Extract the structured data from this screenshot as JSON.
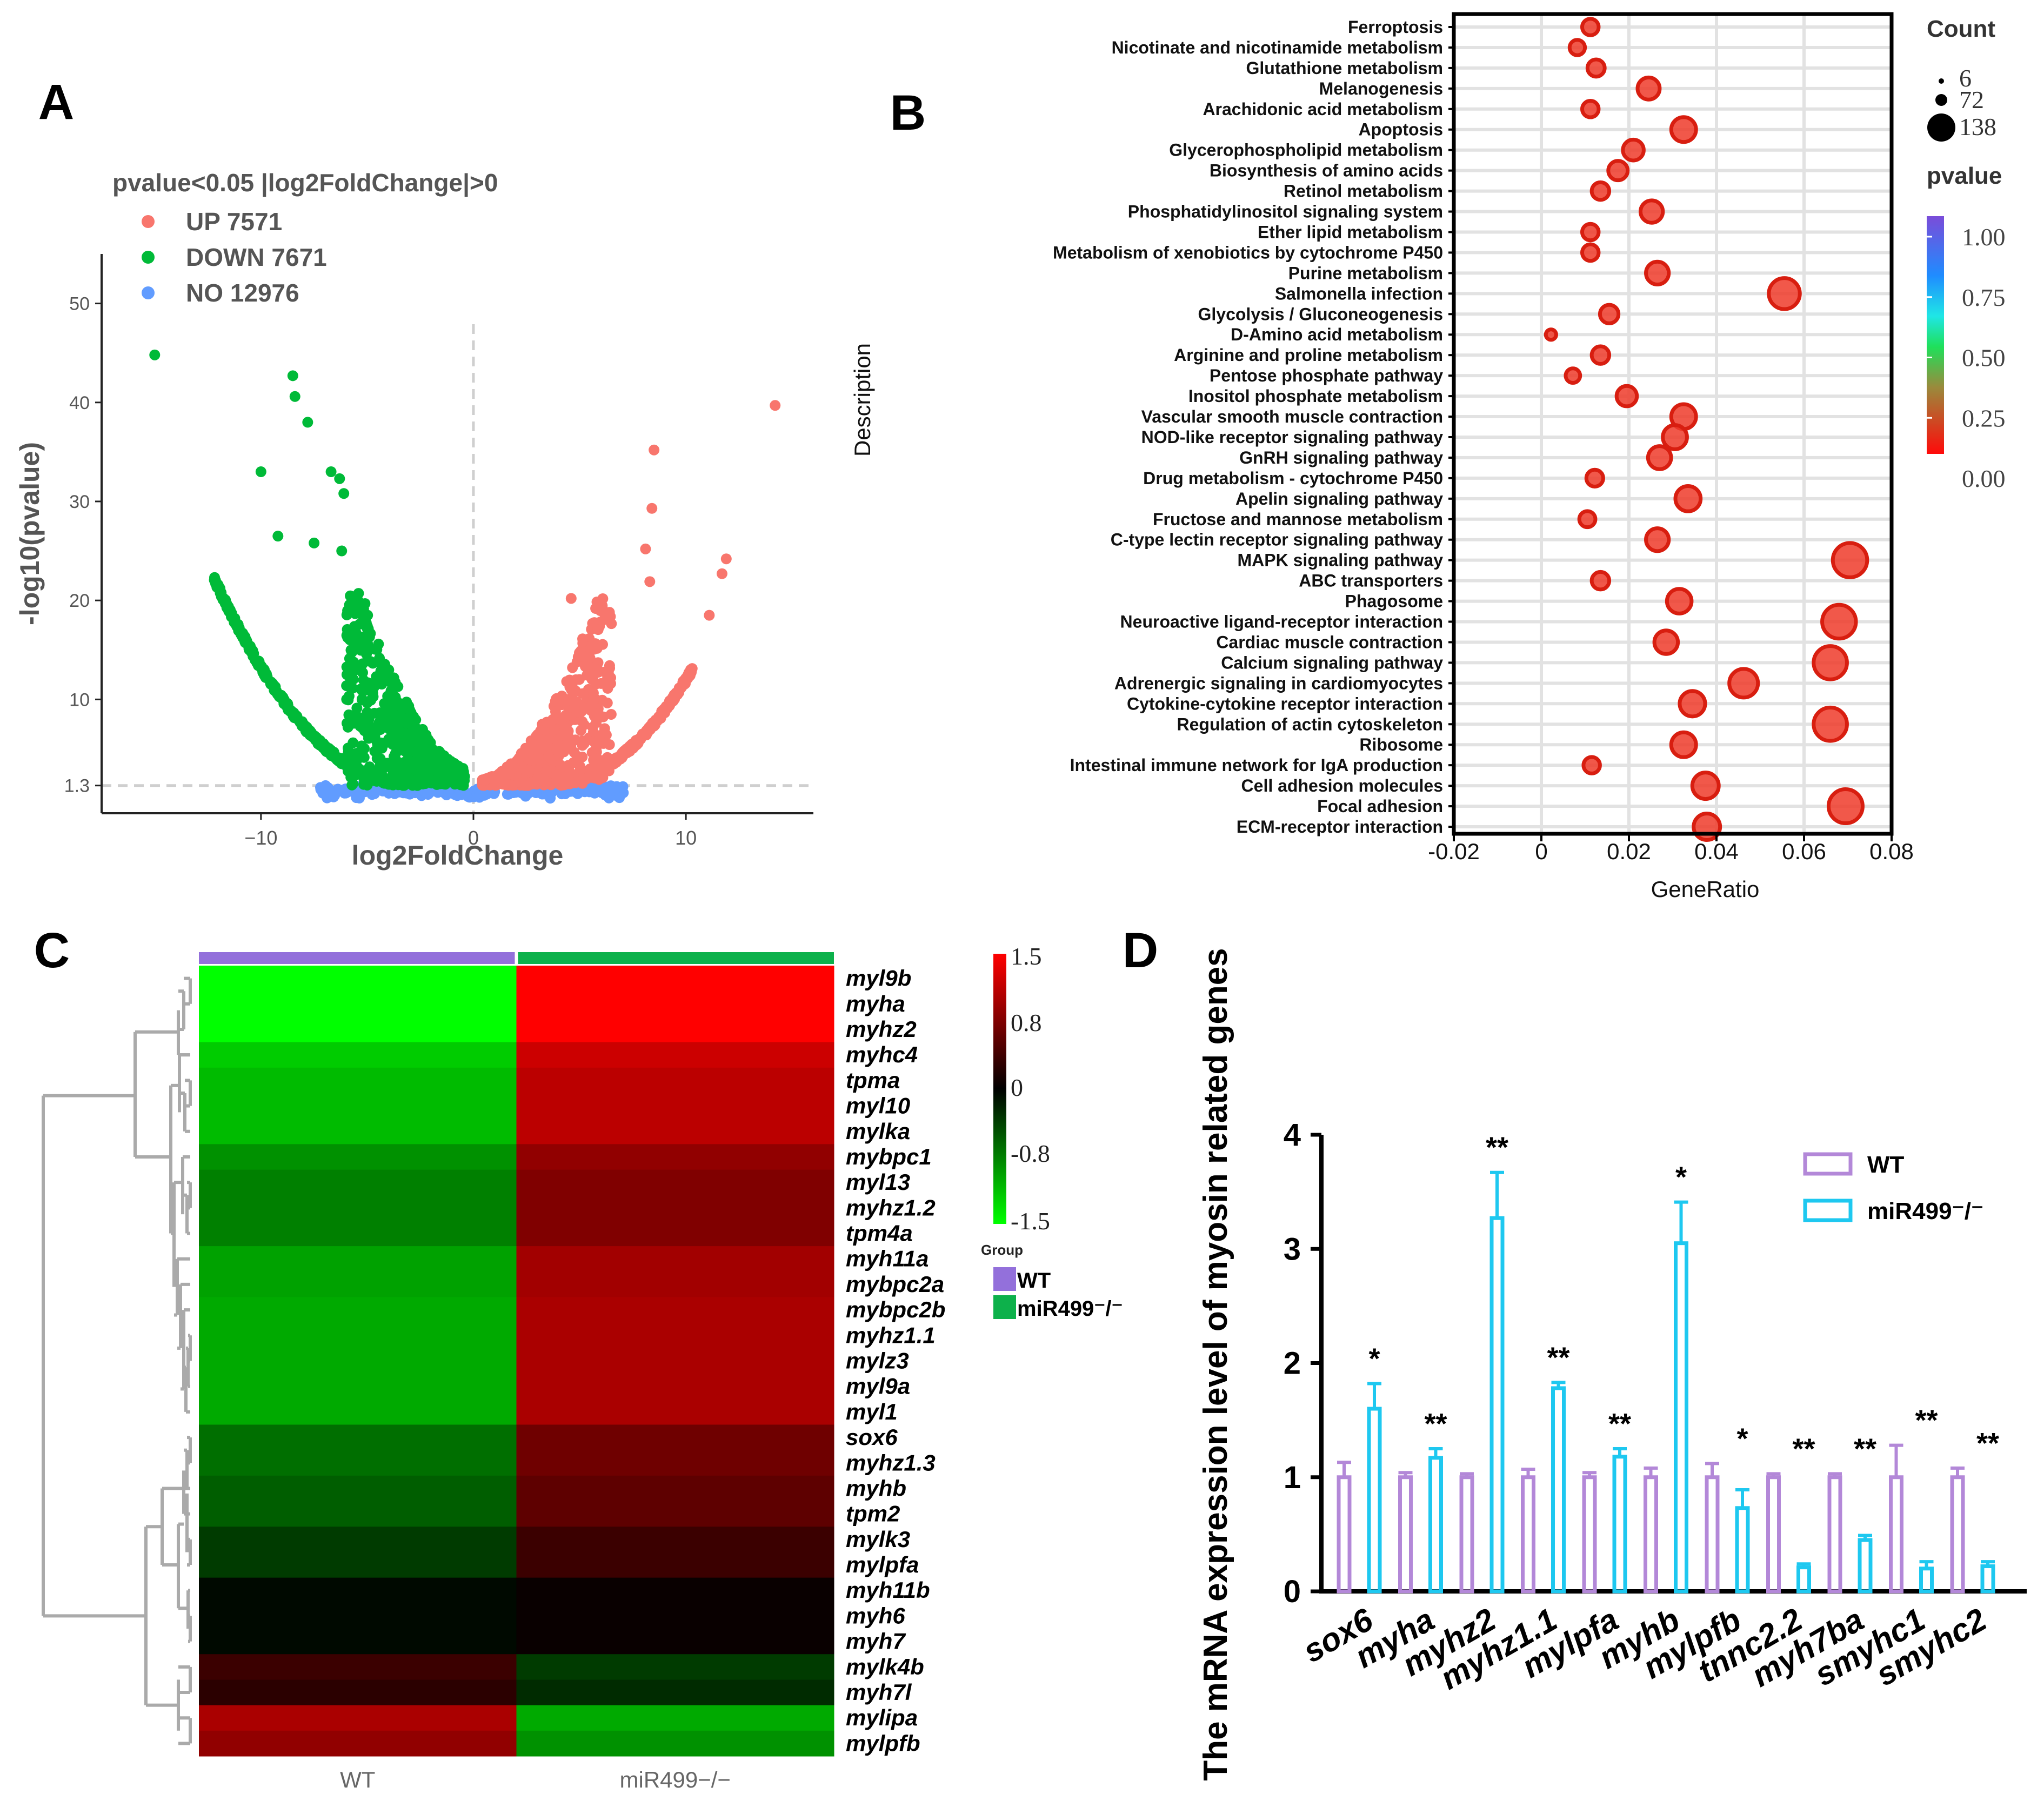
{
  "panel_letters": [
    "A",
    "B",
    "C",
    "D"
  ],
  "chart_data": [
    {
      "type": "scatter",
      "panel": "A",
      "legend_title": "pvalue<0.05 |log2FoldChange|>0",
      "groups": [
        {
          "name": "UP 7571",
          "color": "#F8766D",
          "count": 7571
        },
        {
          "name": "DOWN 7671",
          "color": "#00BA38",
          "count": 7671
        },
        {
          "name": "NO 12976",
          "color": "#619CFF",
          "count": 12976
        }
      ],
      "xlabel": "log2FoldChange",
      "ylabel": "-log10(pvalue)",
      "xlim": [
        -17.5,
        16
      ],
      "ylim": [
        -1.5,
        55
      ],
      "xticks": [
        -10,
        0,
        10
      ],
      "xtick_labels": [
        "−10",
        "0",
        "10"
      ],
      "yticks": [
        1.3,
        10,
        20,
        30,
        40,
        50
      ],
      "ytick_labels": [
        "1.3",
        "10",
        "20",
        "30",
        "40",
        "50"
      ],
      "threshold_y": 1.3,
      "threshold_x": 0,
      "outliers": [
        {
          "x": -15,
          "y": 44.8,
          "group": "DOWN"
        },
        {
          "x": -8.5,
          "y": 42.7,
          "group": "DOWN"
        },
        {
          "x": -8.4,
          "y": 40.6,
          "group": "DOWN"
        },
        {
          "x": -7.8,
          "y": 38,
          "group": "DOWN"
        },
        {
          "x": -10,
          "y": 33,
          "group": "DOWN"
        },
        {
          "x": -6.7,
          "y": 33,
          "group": "DOWN"
        },
        {
          "x": -6.3,
          "y": 32.3,
          "group": "DOWN"
        },
        {
          "x": -6.1,
          "y": 30.8,
          "group": "DOWN"
        },
        {
          "x": -9.2,
          "y": 26.5,
          "group": "DOWN"
        },
        {
          "x": -7.5,
          "y": 25.8,
          "group": "DOWN"
        },
        {
          "x": -6.2,
          "y": 25,
          "group": "DOWN"
        },
        {
          "x": 14.2,
          "y": 39.7,
          "group": "UP"
        },
        {
          "x": 8.5,
          "y": 35.2,
          "group": "UP"
        },
        {
          "x": 8.4,
          "y": 29.3,
          "group": "UP"
        },
        {
          "x": 8.1,
          "y": 25.2,
          "group": "UP"
        },
        {
          "x": 11.9,
          "y": 24.2,
          "group": "UP"
        },
        {
          "x": 11.7,
          "y": 22.7,
          "group": "UP"
        },
        {
          "x": 8.3,
          "y": 21.9,
          "group": "UP"
        },
        {
          "x": 11.1,
          "y": 18.5,
          "group": "UP"
        },
        {
          "x": 4.6,
          "y": 20.2,
          "group": "UP"
        },
        {
          "x": 6.4,
          "y": 18.8,
          "group": "UP"
        }
      ]
    },
    {
      "type": "scatter",
      "panel": "B",
      "subtype": "dotplot",
      "xlabel": "GeneRatio",
      "ylabel": "Description",
      "xlim": [
        -0.02,
        0.08
      ],
      "xticks": [
        -0.02,
        0,
        0.02,
        0.04,
        0.06,
        0.08
      ],
      "xtick_labels": [
        "-0.02",
        "0",
        "0.02",
        "0.04",
        "0.06",
        "0.08"
      ],
      "size_legend_title": "Count",
      "size_legend": [
        6,
        72,
        138
      ],
      "color_legend_title": "pvalue",
      "colorbar_ticks": [
        "1.00",
        "0.75",
        "0.50",
        "0.25",
        "0.00"
      ],
      "terms": [
        {
          "name": "Ferroptosis",
          "ratio": 0.0112,
          "count": 15
        },
        {
          "name": "Nicotinate and nicotinamide metabolism",
          "ratio": 0.0082,
          "count": 12
        },
        {
          "name": "Glutathione metabolism",
          "ratio": 0.0125,
          "count": 17
        },
        {
          "name": "Melanogenesis",
          "ratio": 0.0245,
          "count": 34
        },
        {
          "name": "Arachidonic acid metabolism",
          "ratio": 0.0112,
          "count": 15
        },
        {
          "name": "Apoptosis",
          "ratio": 0.0325,
          "count": 46
        },
        {
          "name": "Glycerophospholipid metabolism",
          "ratio": 0.021,
          "count": 29
        },
        {
          "name": "Biosynthesis of amino acids",
          "ratio": 0.0175,
          "count": 24
        },
        {
          "name": "Retinol metabolism",
          "ratio": 0.0135,
          "count": 18
        },
        {
          "name": "Phosphatidylinositol signaling system",
          "ratio": 0.0252,
          "count": 35
        },
        {
          "name": "Ether lipid metabolism",
          "ratio": 0.0112,
          "count": 15
        },
        {
          "name": "Metabolism of xenobiotics by cytochrome P450",
          "ratio": 0.0112,
          "count": 15
        },
        {
          "name": "Purine metabolism",
          "ratio": 0.0265,
          "count": 37
        },
        {
          "name": "Salmonella infection",
          "ratio": 0.0555,
          "count": 80
        },
        {
          "name": "Glycolysis / Gluconeogenesis",
          "ratio": 0.0155,
          "count": 21
        },
        {
          "name": "D-Amino acid metabolism",
          "ratio": 0.0022,
          "count": 3
        },
        {
          "name": "Arginine and proline metabolism",
          "ratio": 0.0135,
          "count": 18
        },
        {
          "name": "Pentose phosphate pathway",
          "ratio": 0.0072,
          "count": 10
        },
        {
          "name": "Inositol phosphate metabolism",
          "ratio": 0.0195,
          "count": 27
        },
        {
          "name": "Vascular smooth muscle contraction",
          "ratio": 0.0325,
          "count": 46
        },
        {
          "name": "NOD-like receptor signaling pathway",
          "ratio": 0.0305,
          "count": 43
        },
        {
          "name": "GnRH signaling pathway",
          "ratio": 0.027,
          "count": 38
        },
        {
          "name": "Drug metabolism - cytochrome P450",
          "ratio": 0.0122,
          "count": 16
        },
        {
          "name": "Apelin signaling pathway",
          "ratio": 0.0335,
          "count": 48
        },
        {
          "name": "Fructose and mannose metabolism",
          "ratio": 0.0105,
          "count": 14
        },
        {
          "name": "C-type lectin receptor signaling pathway",
          "ratio": 0.0265,
          "count": 37
        },
        {
          "name": "MAPK signaling pathway",
          "ratio": 0.0705,
          "count": 102
        },
        {
          "name": "ABC transporters",
          "ratio": 0.0135,
          "count": 18
        },
        {
          "name": "Phagosome",
          "ratio": 0.0315,
          "count": 45
        },
        {
          "name": "Neuroactive ligand-receptor interaction",
          "ratio": 0.068,
          "count": 98
        },
        {
          "name": "Cardiac muscle contraction",
          "ratio": 0.0285,
          "count": 40
        },
        {
          "name": "Calcium signaling pathway",
          "ratio": 0.066,
          "count": 95
        },
        {
          "name": "Adrenergic signaling in cardiomyocytes",
          "ratio": 0.0462,
          "count": 66
        },
        {
          "name": "Cytokine-cytokine receptor interaction",
          "ratio": 0.0345,
          "count": 49
        },
        {
          "name": "Regulation of actin cytoskeleton",
          "ratio": 0.066,
          "count": 95
        },
        {
          "name": "Ribosome",
          "ratio": 0.0325,
          "count": 46
        },
        {
          "name": "Intestinal immune network for IgA production",
          "ratio": 0.0115,
          "count": 15
        },
        {
          "name": "Cell adhesion molecules",
          "ratio": 0.0375,
          "count": 54
        },
        {
          "name": "Focal adhesion",
          "ratio": 0.0695,
          "count": 100
        },
        {
          "name": "ECM-receptor interaction",
          "ratio": 0.0378,
          "count": 54
        }
      ]
    },
    {
      "type": "heatmap",
      "panel": "C",
      "columns": [
        "WT",
        "miR499−/−"
      ],
      "legend_title": "Group",
      "legend_groups": [
        {
          "label": "WT",
          "color": "#9370DB"
        },
        {
          "label": "miR499⁻/⁻",
          "color": "#0DB14B"
        }
      ],
      "scale_ticks": [
        "1.5",
        "0.8",
        "0",
        "-0.8",
        "-1.5"
      ],
      "scale_range": [
        -1.5,
        1.5
      ],
      "rows": [
        {
          "gene": "myl9b",
          "values": [
            -1.5,
            1.5
          ]
        },
        {
          "gene": "myha",
          "values": [
            -1.5,
            1.5
          ]
        },
        {
          "gene": "myhz2",
          "values": [
            -1.5,
            1.5
          ]
        },
        {
          "gene": "myhc4",
          "values": [
            -1.2,
            1.2
          ]
        },
        {
          "gene": "tpma",
          "values": [
            -1.1,
            1.1
          ]
        },
        {
          "gene": "myl10",
          "values": [
            -1.1,
            1.1
          ]
        },
        {
          "gene": "mylka",
          "values": [
            -1.1,
            1.1
          ]
        },
        {
          "gene": "mybpc1",
          "values": [
            -0.85,
            0.85
          ]
        },
        {
          "gene": "myl13",
          "values": [
            -0.75,
            0.75
          ]
        },
        {
          "gene": "myhz1.2",
          "values": [
            -0.75,
            0.75
          ]
        },
        {
          "gene": "tpm4a",
          "values": [
            -0.75,
            0.75
          ]
        },
        {
          "gene": "myh11a",
          "values": [
            -0.95,
            0.95
          ]
        },
        {
          "gene": "mybpc2a",
          "values": [
            -0.95,
            0.95
          ]
        },
        {
          "gene": "mybpc2b",
          "values": [
            -1.0,
            1.0
          ]
        },
        {
          "gene": "myhz1.1",
          "values": [
            -1.0,
            1.0
          ]
        },
        {
          "gene": "mylz3",
          "values": [
            -1.0,
            1.0
          ]
        },
        {
          "gene": "myl9a",
          "values": [
            -1.0,
            1.0
          ]
        },
        {
          "gene": "myl1",
          "values": [
            -1.0,
            1.0
          ]
        },
        {
          "gene": "sox6",
          "values": [
            -0.65,
            0.65
          ]
        },
        {
          "gene": "myhz1.3",
          "values": [
            -0.65,
            0.65
          ]
        },
        {
          "gene": "myhb",
          "values": [
            -0.55,
            0.55
          ]
        },
        {
          "gene": "tpm2",
          "values": [
            -0.55,
            0.55
          ]
        },
        {
          "gene": "mylk3",
          "values": [
            -0.35,
            0.35
          ]
        },
        {
          "gene": "mylpfa",
          "values": [
            -0.35,
            0.35
          ]
        },
        {
          "gene": "myh11b",
          "values": [
            -0.05,
            0.05
          ]
        },
        {
          "gene": "myh6",
          "values": [
            -0.05,
            0.05
          ]
        },
        {
          "gene": "myh7",
          "values": [
            -0.05,
            0.05
          ]
        },
        {
          "gene": "mylk4b",
          "values": [
            0.35,
            -0.35
          ]
        },
        {
          "gene": "myh7l",
          "values": [
            0.25,
            -0.25
          ]
        },
        {
          "gene": "mylipa",
          "values": [
            1.0,
            -1.0
          ]
        },
        {
          "gene": "mylpfb",
          "values": [
            0.85,
            -0.85
          ]
        }
      ]
    },
    {
      "type": "bar",
      "panel": "D",
      "categories": [
        "sox6",
        "myha",
        "myhz2",
        "myhz1.1",
        "mylpfa",
        "myhb",
        "mylpfb",
        "tnnc2.2",
        "myh7ba",
        "smyhc1",
        "smyhc2"
      ],
      "series": [
        {
          "name": "WT",
          "color": "#B388D8",
          "values": [
            1.0,
            1.0,
            1.0,
            1.0,
            1.0,
            1.0,
            1.0,
            1.0,
            1.0,
            1.0,
            1.0
          ],
          "errors": [
            0.13,
            0.04,
            0.03,
            0.07,
            0.04,
            0.08,
            0.12,
            0.03,
            0.03,
            0.28,
            0.08
          ]
        },
        {
          "name": "miR499⁻/⁻",
          "color": "#1EC8F0",
          "values": [
            1.6,
            1.17,
            3.27,
            1.78,
            1.18,
            3.05,
            0.73,
            0.21,
            0.45,
            0.2,
            0.22
          ],
          "errors": [
            0.22,
            0.08,
            0.4,
            0.05,
            0.07,
            0.36,
            0.16,
            0.03,
            0.04,
            0.06,
            0.04
          ]
        }
      ],
      "significance": [
        "*",
        "**",
        "**",
        "**",
        "**",
        "*",
        "*",
        "**",
        "**",
        "**",
        "**"
      ],
      "ylabel": "The mRNA expression level of myosin related genes",
      "ylim": [
        0,
        4
      ],
      "yticks": [
        0,
        1,
        2,
        3,
        4
      ],
      "ytick_labels": [
        "0",
        "1",
        "2",
        "3",
        "4"
      ]
    }
  ]
}
